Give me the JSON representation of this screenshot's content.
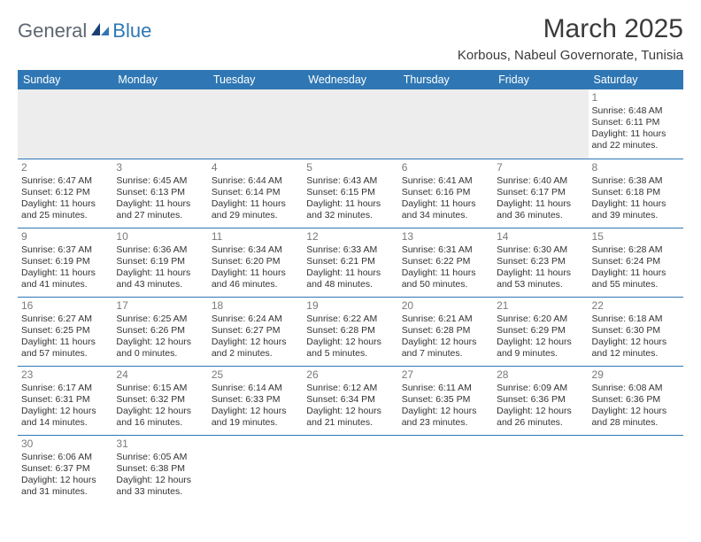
{
  "logo": {
    "text_dark": "General",
    "text_blue": "Blue"
  },
  "title": "March 2025",
  "location": "Korbous, Nabeul Governorate, Tunisia",
  "colors": {
    "header_bg": "#2f77b4",
    "header_text": "#ffffff",
    "border": "#2f77b4",
    "logo_dark": "#5d6770",
    "logo_blue": "#2f77b4",
    "empty_row_bg": "#ededed",
    "text": "#333333",
    "daynum": "#7a7a7a"
  },
  "weekdays": [
    "Sunday",
    "Monday",
    "Tuesday",
    "Wednesday",
    "Thursday",
    "Friday",
    "Saturday"
  ],
  "weeks": [
    [
      null,
      null,
      null,
      null,
      null,
      null,
      {
        "n": "1",
        "sr": "Sunrise: 6:48 AM",
        "ss": "Sunset: 6:11 PM",
        "dl": "Daylight: 11 hours and 22 minutes."
      }
    ],
    [
      {
        "n": "2",
        "sr": "Sunrise: 6:47 AM",
        "ss": "Sunset: 6:12 PM",
        "dl": "Daylight: 11 hours and 25 minutes."
      },
      {
        "n": "3",
        "sr": "Sunrise: 6:45 AM",
        "ss": "Sunset: 6:13 PM",
        "dl": "Daylight: 11 hours and 27 minutes."
      },
      {
        "n": "4",
        "sr": "Sunrise: 6:44 AM",
        "ss": "Sunset: 6:14 PM",
        "dl": "Daylight: 11 hours and 29 minutes."
      },
      {
        "n": "5",
        "sr": "Sunrise: 6:43 AM",
        "ss": "Sunset: 6:15 PM",
        "dl": "Daylight: 11 hours and 32 minutes."
      },
      {
        "n": "6",
        "sr": "Sunrise: 6:41 AM",
        "ss": "Sunset: 6:16 PM",
        "dl": "Daylight: 11 hours and 34 minutes."
      },
      {
        "n": "7",
        "sr": "Sunrise: 6:40 AM",
        "ss": "Sunset: 6:17 PM",
        "dl": "Daylight: 11 hours and 36 minutes."
      },
      {
        "n": "8",
        "sr": "Sunrise: 6:38 AM",
        "ss": "Sunset: 6:18 PM",
        "dl": "Daylight: 11 hours and 39 minutes."
      }
    ],
    [
      {
        "n": "9",
        "sr": "Sunrise: 6:37 AM",
        "ss": "Sunset: 6:19 PM",
        "dl": "Daylight: 11 hours and 41 minutes."
      },
      {
        "n": "10",
        "sr": "Sunrise: 6:36 AM",
        "ss": "Sunset: 6:19 PM",
        "dl": "Daylight: 11 hours and 43 minutes."
      },
      {
        "n": "11",
        "sr": "Sunrise: 6:34 AM",
        "ss": "Sunset: 6:20 PM",
        "dl": "Daylight: 11 hours and 46 minutes."
      },
      {
        "n": "12",
        "sr": "Sunrise: 6:33 AM",
        "ss": "Sunset: 6:21 PM",
        "dl": "Daylight: 11 hours and 48 minutes."
      },
      {
        "n": "13",
        "sr": "Sunrise: 6:31 AM",
        "ss": "Sunset: 6:22 PM",
        "dl": "Daylight: 11 hours and 50 minutes."
      },
      {
        "n": "14",
        "sr": "Sunrise: 6:30 AM",
        "ss": "Sunset: 6:23 PM",
        "dl": "Daylight: 11 hours and 53 minutes."
      },
      {
        "n": "15",
        "sr": "Sunrise: 6:28 AM",
        "ss": "Sunset: 6:24 PM",
        "dl": "Daylight: 11 hours and 55 minutes."
      }
    ],
    [
      {
        "n": "16",
        "sr": "Sunrise: 6:27 AM",
        "ss": "Sunset: 6:25 PM",
        "dl": "Daylight: 11 hours and 57 minutes."
      },
      {
        "n": "17",
        "sr": "Sunrise: 6:25 AM",
        "ss": "Sunset: 6:26 PM",
        "dl": "Daylight: 12 hours and 0 minutes."
      },
      {
        "n": "18",
        "sr": "Sunrise: 6:24 AM",
        "ss": "Sunset: 6:27 PM",
        "dl": "Daylight: 12 hours and 2 minutes."
      },
      {
        "n": "19",
        "sr": "Sunrise: 6:22 AM",
        "ss": "Sunset: 6:28 PM",
        "dl": "Daylight: 12 hours and 5 minutes."
      },
      {
        "n": "20",
        "sr": "Sunrise: 6:21 AM",
        "ss": "Sunset: 6:28 PM",
        "dl": "Daylight: 12 hours and 7 minutes."
      },
      {
        "n": "21",
        "sr": "Sunrise: 6:20 AM",
        "ss": "Sunset: 6:29 PM",
        "dl": "Daylight: 12 hours and 9 minutes."
      },
      {
        "n": "22",
        "sr": "Sunrise: 6:18 AM",
        "ss": "Sunset: 6:30 PM",
        "dl": "Daylight: 12 hours and 12 minutes."
      }
    ],
    [
      {
        "n": "23",
        "sr": "Sunrise: 6:17 AM",
        "ss": "Sunset: 6:31 PM",
        "dl": "Daylight: 12 hours and 14 minutes."
      },
      {
        "n": "24",
        "sr": "Sunrise: 6:15 AM",
        "ss": "Sunset: 6:32 PM",
        "dl": "Daylight: 12 hours and 16 minutes."
      },
      {
        "n": "25",
        "sr": "Sunrise: 6:14 AM",
        "ss": "Sunset: 6:33 PM",
        "dl": "Daylight: 12 hours and 19 minutes."
      },
      {
        "n": "26",
        "sr": "Sunrise: 6:12 AM",
        "ss": "Sunset: 6:34 PM",
        "dl": "Daylight: 12 hours and 21 minutes."
      },
      {
        "n": "27",
        "sr": "Sunrise: 6:11 AM",
        "ss": "Sunset: 6:35 PM",
        "dl": "Daylight: 12 hours and 23 minutes."
      },
      {
        "n": "28",
        "sr": "Sunrise: 6:09 AM",
        "ss": "Sunset: 6:36 PM",
        "dl": "Daylight: 12 hours and 26 minutes."
      },
      {
        "n": "29",
        "sr": "Sunrise: 6:08 AM",
        "ss": "Sunset: 6:36 PM",
        "dl": "Daylight: 12 hours and 28 minutes."
      }
    ],
    [
      {
        "n": "30",
        "sr": "Sunrise: 6:06 AM",
        "ss": "Sunset: 6:37 PM",
        "dl": "Daylight: 12 hours and 31 minutes."
      },
      {
        "n": "31",
        "sr": "Sunrise: 6:05 AM",
        "ss": "Sunset: 6:38 PM",
        "dl": "Daylight: 12 hours and 33 minutes."
      },
      null,
      null,
      null,
      null,
      null
    ]
  ]
}
